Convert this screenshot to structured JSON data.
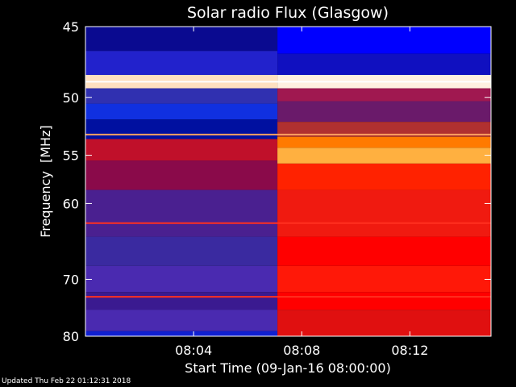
{
  "chart_data": {
    "type": "heatmap",
    "title": "Solar radio Flux (Glasgow)",
    "xlabel": "Start Time (09-Jan-16 08:00:00)",
    "ylabel_text": "Frequency",
    "ylabel_unit": "MHz",
    "x_unit": "minutes after 08:00",
    "xlim": [
      0,
      15.0
    ],
    "ylim": [
      80,
      45
    ],
    "y_scale": "reciprocal",
    "x_ticks": [
      {
        "value": 4,
        "label": "08:04"
      },
      {
        "value": 8,
        "label": "08:08"
      },
      {
        "value": 12,
        "label": "08:12"
      }
    ],
    "y_ticks": [
      {
        "value": 45,
        "label": "45"
      },
      {
        "value": 50,
        "label": "50"
      },
      {
        "value": 55,
        "label": "55"
      },
      {
        "value": 60,
        "label": "60"
      },
      {
        "value": 70,
        "label": "70"
      },
      {
        "value": 80,
        "label": "80"
      }
    ],
    "colormap": [
      "#000060",
      "#2020d0",
      "#0000ff",
      "#4a2ab0",
      "#c00020",
      "#ff0000",
      "#ff6000",
      "#ffd070",
      "#ffffff"
    ],
    "segments": [
      {
        "x_range": [
          0,
          7.1
        ],
        "bands": [
          {
            "f": [
              45,
              46.6
            ],
            "color": "#0a0a90"
          },
          {
            "f": [
              46.6,
              48.3
            ],
            "color": "#2222cc"
          },
          {
            "f": [
              48.3,
              49.3
            ],
            "color": "#ffe0c0"
          },
          {
            "f": [
              49.3,
              50.5
            ],
            "color": "#3030b0"
          },
          {
            "f": [
              50.5,
              51.8
            ],
            "color": "#1030e0"
          },
          {
            "f": [
              51.8,
              53.5
            ],
            "color": "#0010a0"
          },
          {
            "f": [
              53.5,
              55.5
            ],
            "color": "#c0102a"
          },
          {
            "f": [
              55.5,
              58.5
            ],
            "color": "#8a0a4a"
          },
          {
            "f": [
              58.5,
              64
            ],
            "color": "#4a2090"
          },
          {
            "f": [
              64,
              68
            ],
            "color": "#3a2aa0"
          },
          {
            "f": [
              68,
              72
            ],
            "color": "#4a2ab0"
          },
          {
            "f": [
              72,
              75
            ],
            "color": "#3a1a90"
          },
          {
            "f": [
              75,
              79
            ],
            "color": "#4a2ab0"
          },
          {
            "f": [
              79,
              80
            ],
            "color": "#1020d0"
          }
        ]
      },
      {
        "x_range": [
          7.1,
          15.0
        ],
        "bands": [
          {
            "f": [
              45,
              46.8
            ],
            "color": "#0000ff"
          },
          {
            "f": [
              46.8,
              48.3
            ],
            "color": "#1010c0"
          },
          {
            "f": [
              48.3,
              49.3
            ],
            "color": "#fff0e0"
          },
          {
            "f": [
              49.3,
              50.3
            ],
            "color": "#a01850"
          },
          {
            "f": [
              50.3,
              52.0
            ],
            "color": "#6a1a6a"
          },
          {
            "f": [
              52.0,
              53.3
            ],
            "color": "#b03030"
          },
          {
            "f": [
              53.3,
              54.3
            ],
            "color": "#ff7a00"
          },
          {
            "f": [
              54.3,
              55.8
            ],
            "color": "#ffb040"
          },
          {
            "f": [
              55.8,
              58.5
            ],
            "color": "#ff2200"
          },
          {
            "f": [
              58.5,
              64
            ],
            "color": "#f01a10"
          },
          {
            "f": [
              64,
              68
            ],
            "color": "#ff0000"
          },
          {
            "f": [
              68,
              72
            ],
            "color": "#ff1808"
          },
          {
            "f": [
              72,
              75
            ],
            "color": "#ff0000"
          },
          {
            "f": [
              75,
              80
            ],
            "color": "#e01010"
          }
        ]
      }
    ],
    "horizontal_lines": [
      {
        "f": 48.8,
        "color": "#ffffff"
      },
      {
        "f": 53.1,
        "color": "#ffa060"
      },
      {
        "f": 62.3,
        "color": "#ff3020"
      },
      {
        "f": 72.8,
        "color": "#ff3020"
      }
    ]
  },
  "footer": {
    "updated": "Updated Thu Feb 22 01:12:31 2018"
  }
}
